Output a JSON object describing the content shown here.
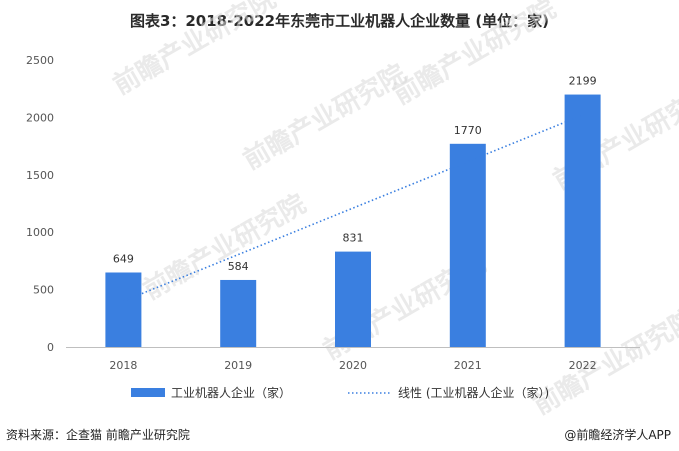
{
  "title": "图表3：2018-2022年东莞市工业机器人企业数量 (单位：家)",
  "source": "资料来源：企查猫 前瞻产业研究院",
  "credit": "@前瞻经济学人APP",
  "watermark": "前瞻产业研究院",
  "colors": {
    "bar": "#3A7FE0",
    "trend": "#3A7FE0",
    "axis": "#bfbfbf",
    "grid": "#e6e6e6"
  },
  "chart_data": {
    "type": "bar",
    "title": "图表3：2018-2022年东莞市工业机器人企业数量 (单位：家)",
    "categories": [
      "2018",
      "2019",
      "2020",
      "2021",
      "2022"
    ],
    "series": [
      {
        "name": "工业机器人企业（家）",
        "values": [
          649,
          584,
          831,
          1770,
          2199
        ]
      },
      {
        "name": "线性 (工业机器人企业（家）)",
        "type": "line",
        "style": "dotted",
        "values": [
          400,
          805,
          1210,
          1615,
          2020
        ]
      }
    ],
    "data_labels": [
      "649",
      "584",
      "831",
      "1770",
      "2199"
    ],
    "y_ticks": [
      "0",
      "500",
      "1000",
      "1500",
      "2000",
      "2500"
    ],
    "ylim": [
      0,
      2500
    ],
    "xlabel": "",
    "ylabel": "",
    "grid": false,
    "legend_position": "bottom"
  }
}
